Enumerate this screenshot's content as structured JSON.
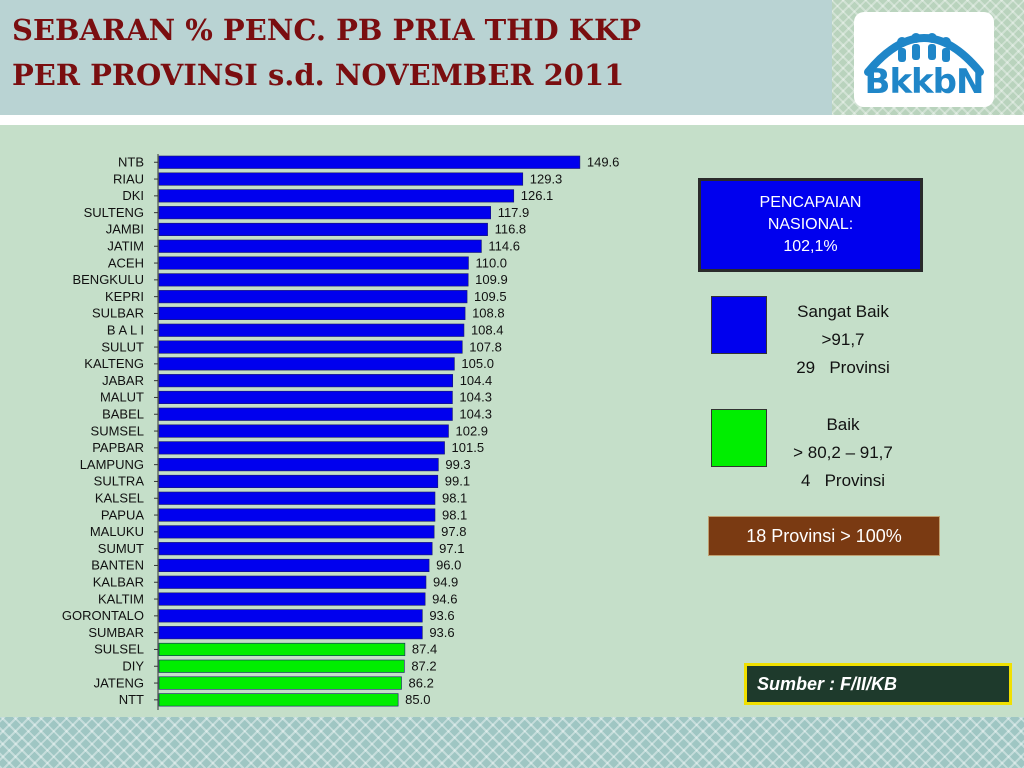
{
  "header": {
    "title_line1": "SEBARAN % PENC. PB PRIA THD KKP",
    "title_line2": "PER PROVINSI s.d. NOVEMBER 2011"
  },
  "logo": {
    "text": "BkkbN",
    "icon": "family-arch-logo"
  },
  "national": {
    "line1": "PENCAPAIAN",
    "line2": "NASIONAL:",
    "line3": "102,1%"
  },
  "legend": [
    {
      "label": "Sangat Baik",
      "range": ">91,7",
      "count": "29",
      "unit": "Provinsi",
      "color": "#0000ee"
    },
    {
      "label": "Baik",
      "range": "> 80,2 – 91,7",
      "count": "4",
      "unit": "Provinsi",
      "color": "#00ee00"
    }
  ],
  "summary": "18 Provinsi > 100%",
  "source": "Sumber : F/II/KB",
  "chart_data": {
    "type": "bar",
    "orientation": "horizontal",
    "categories": [
      "NTB",
      "RIAU",
      "DKI",
      "SULTENG",
      "JAMBI",
      "JATIM",
      "ACEH",
      "BENGKULU",
      "KEPRI",
      "SULBAR",
      "B A L I",
      "SULUT",
      "KALTENG",
      "JABAR",
      "MALUT",
      "BABEL",
      "SUMSEL",
      "PAPBAR",
      "LAMPUNG",
      "SULTRA",
      "KALSEL",
      "PAPUA",
      "MALUKU",
      "SUMUT",
      "BANTEN",
      "KALBAR",
      "KALTIM",
      "GORONTALO",
      "SUMBAR",
      "SULSEL",
      "DIY",
      "JATENG",
      "NTT"
    ],
    "values": [
      149.6,
      129.3,
      126.1,
      117.9,
      116.8,
      114.6,
      110.0,
      109.9,
      109.5,
      108.8,
      108.4,
      107.8,
      105.0,
      104.4,
      104.3,
      104.3,
      102.9,
      101.5,
      99.3,
      99.1,
      98.1,
      98.1,
      97.8,
      97.1,
      96.0,
      94.9,
      94.6,
      93.6,
      93.6,
      87.4,
      87.2,
      86.2,
      85.0
    ],
    "labels": [
      "149.6",
      "129.3",
      "126.1",
      "117.9",
      "116.8",
      "114.6",
      "110.0",
      "109.9",
      "109.5",
      "108.8",
      "108.4",
      "107.8",
      "105.0",
      "104.4",
      "104.3",
      "104.3",
      "102.9",
      "101.5",
      "99.3",
      "99.1",
      "98.1",
      "98.1",
      "97.8",
      "97.1",
      "96.0",
      "94.9",
      "94.6",
      "93.6",
      "93.6",
      "87.4",
      "87.2",
      "86.2",
      "85.0"
    ],
    "colors": {
      "sangat_baik": "#0000ee",
      "baik": "#00ee00"
    },
    "threshold": 91.7,
    "xlim": [
      0,
      150
    ],
    "grid": false
  }
}
